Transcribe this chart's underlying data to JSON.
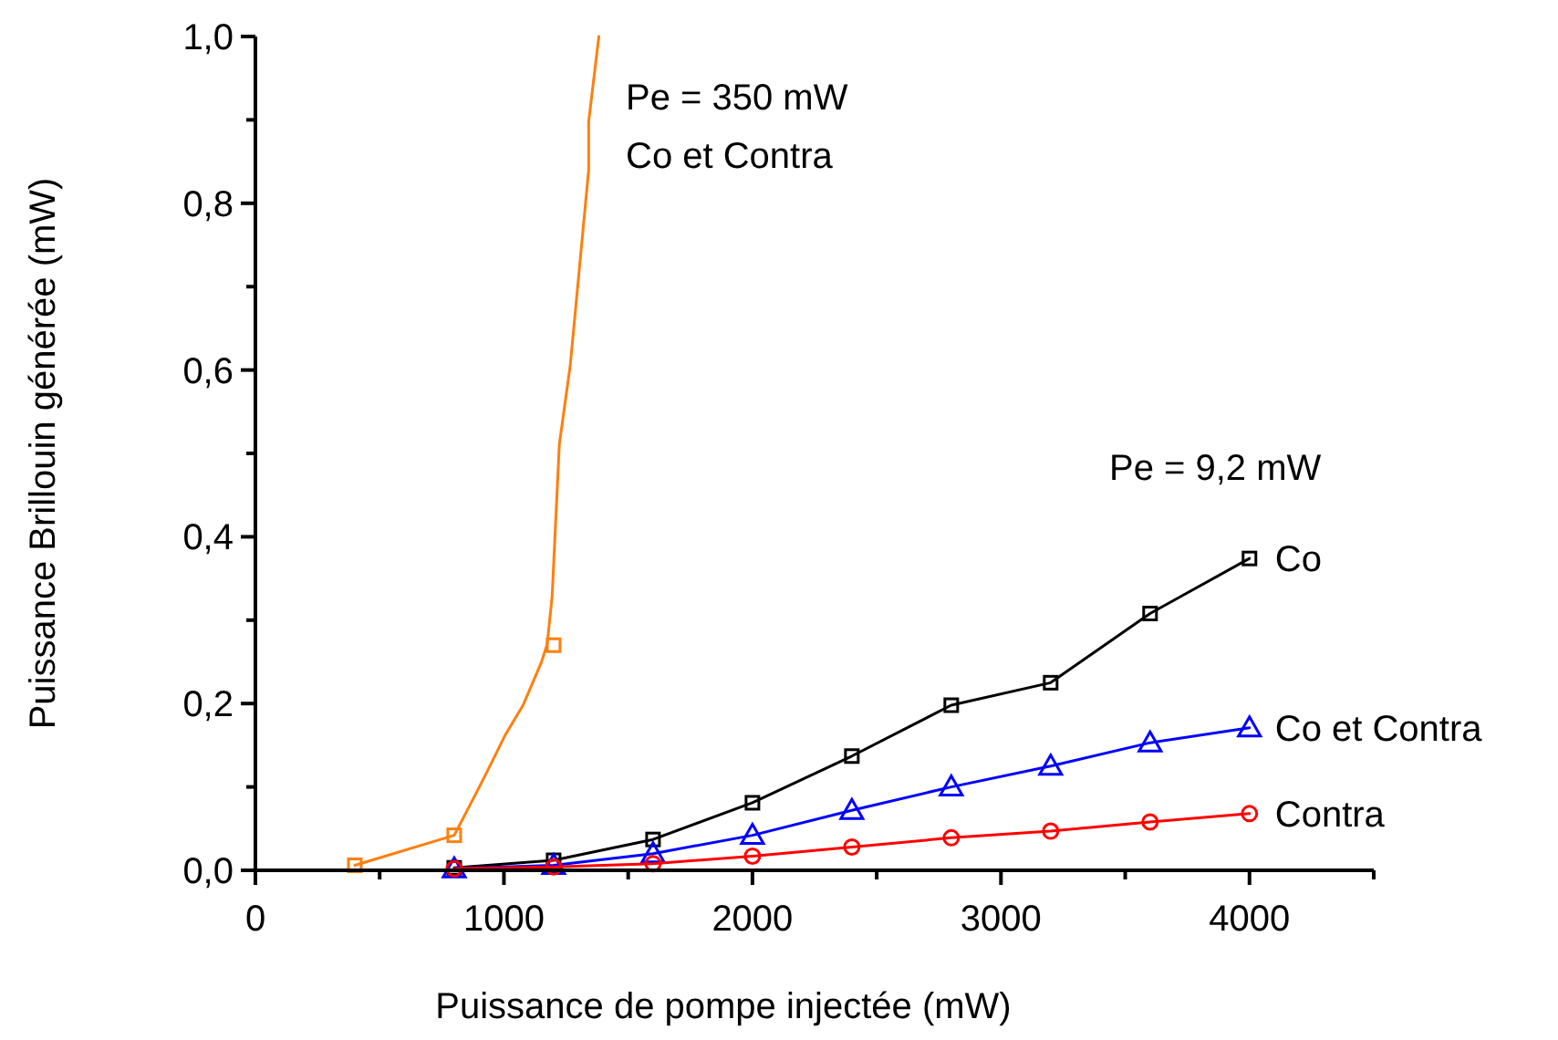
{
  "chart_data": {
    "type": "line",
    "xlabel": "Puissance de pompe injectée (mW)",
    "ylabel": "Puissance Brillouin générée (mW)",
    "xlim": [
      0,
      4500
    ],
    "xticks": [
      0,
      {
        "value": 500,
        "label": null
      },
      1000,
      {
        "value": 1500,
        "label": null
      },
      2000,
      {
        "value": 2500,
        "label": null
      },
      3000,
      {
        "value": 3500,
        "label": null
      },
      4000,
      {
        "value": 4500,
        "label": null
      }
    ],
    "ylim": [
      0,
      1
    ],
    "yticks": [
      {
        "value": 0,
        "label": "0,0"
      },
      {
        "value": 0.1,
        "label": null
      },
      {
        "value": 0.2,
        "label": "0,2"
      },
      {
        "value": 0.3,
        "label": null
      },
      {
        "value": 0.4,
        "label": "0,4"
      },
      {
        "value": 0.5,
        "label": null
      },
      {
        "value": 0.6,
        "label": "0,6"
      },
      {
        "value": 0.7,
        "label": null
      },
      {
        "value": 0.8,
        "label": "0,8"
      },
      {
        "value": 0.9,
        "label": null
      },
      {
        "value": 1,
        "label": "1,0"
      }
    ],
    "grid": false,
    "legend": false,
    "annotations": [
      "Pe = 350 mW",
      "Co et Contra",
      "Pe = 9,2 mW"
    ],
    "series": [
      {
        "color": "#ff7f0e",
        "marker": "none",
        "x": [
          400,
          800,
          856,
          930,
          1003,
          1077,
          1150,
          1174,
          1194,
          1223,
          1267,
          1341,
          1341,
          1382
        ],
        "values": [
          0.006,
          0.042,
          0.074,
          0.117,
          0.161,
          0.198,
          0.249,
          0.271,
          0.329,
          0.511,
          0.606,
          0.84,
          0.898,
          1.0
        ]
      },
      {
        "type": "scatter",
        "color": "#ff7f0e",
        "marker": "square",
        "x": [
          400,
          800,
          1200
        ],
        "values": [
          0.006,
          0.042,
          0.27
        ]
      },
      {
        "name": "Co",
        "color": "#000000",
        "marker": "square",
        "x": [
          800,
          1200,
          1600,
          2000,
          2400,
          2800,
          3200,
          3600,
          4000
        ],
        "values": [
          0.003,
          0.012,
          0.037,
          0.081,
          0.137,
          0.198,
          0.225,
          0.308,
          0.374
        ]
      },
      {
        "name": "Co et Contra",
        "color": "#0000ff",
        "marker": "triangle",
        "x": [
          800,
          1200,
          1600,
          2000,
          2400,
          2800,
          3200,
          3600,
          4000
        ],
        "values": [
          0.002,
          0.006,
          0.02,
          0.042,
          0.072,
          0.1,
          0.125,
          0.153,
          0.171
        ]
      },
      {
        "name": "Contra",
        "color": "#ff0000",
        "marker": "circle",
        "x": [
          800,
          1200,
          1600,
          2000,
          2400,
          2800,
          3200,
          3600,
          4000
        ],
        "values": [
          0.002,
          0.004,
          0.008,
          0.017,
          0.028,
          0.039,
          0.047,
          0.058,
          0.068
        ]
      }
    ]
  }
}
